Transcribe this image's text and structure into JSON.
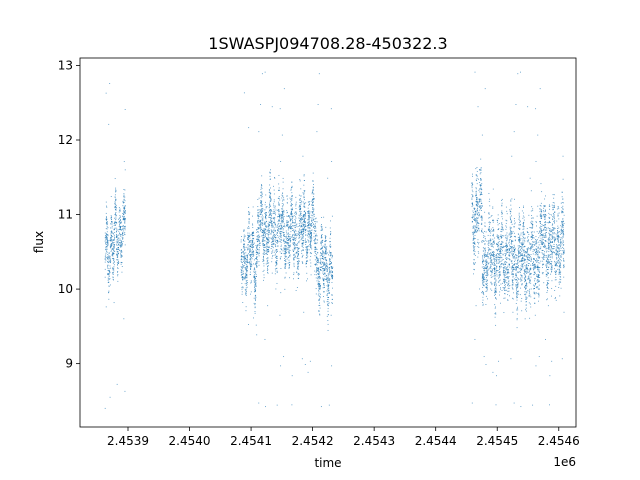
{
  "chart_data": {
    "type": "scatter",
    "title": "1SWASPJ094708.28-450322.3",
    "xlabel": "time",
    "ylabel": "flux",
    "x_offset_label": "1e6",
    "xlim": [
      2453822,
      2454628
    ],
    "ylim": [
      8.15,
      13.1
    ],
    "xticks": [
      2.4539,
      2.454,
      2.4541,
      2.4542,
      2.4543,
      2.4544,
      2.4545,
      2.4546
    ],
    "xtick_labels": [
      "2.4539",
      "2.4540",
      "2.4541",
      "2.4542",
      "2.4543",
      "2.4544",
      "2.4545",
      "2.4546"
    ],
    "yticks": [
      9,
      10,
      11,
      12,
      13
    ],
    "ytick_labels": [
      "9",
      "10",
      "11",
      "12",
      "13"
    ],
    "grid": false,
    "legend": "none",
    "marker_color": "#1f77b4",
    "series": [
      {
        "segments": [
          {
            "t_start": 2453862,
            "t_end": 2453878,
            "center": 10.55,
            "spread": 0.45
          },
          {
            "t_start": 2453878,
            "t_end": 2453895,
            "center": 10.75,
            "spread": 0.4
          },
          {
            "t_start": 2454083,
            "t_end": 2454110,
            "center": 10.45,
            "spread": 0.45
          },
          {
            "t_start": 2454110,
            "t_end": 2454150,
            "center": 10.8,
            "spread": 0.5
          },
          {
            "t_start": 2454150,
            "t_end": 2454185,
            "center": 10.75,
            "spread": 0.5
          },
          {
            "t_start": 2454185,
            "t_end": 2454205,
            "center": 10.85,
            "spread": 0.5
          },
          {
            "t_start": 2454205,
            "t_end": 2454232,
            "center": 10.3,
            "spread": 0.45
          },
          {
            "t_start": 2454458,
            "t_end": 2454475,
            "center": 11.0,
            "spread": 0.6
          },
          {
            "t_start": 2454475,
            "t_end": 2454525,
            "center": 10.45,
            "spread": 0.6
          },
          {
            "t_start": 2454525,
            "t_end": 2454565,
            "center": 10.4,
            "spread": 0.6
          },
          {
            "t_start": 2454565,
            "t_end": 2454608,
            "center": 10.6,
            "spread": 0.6
          }
        ],
        "outlier_range": [
          8.35,
          12.95
        ]
      }
    ]
  }
}
